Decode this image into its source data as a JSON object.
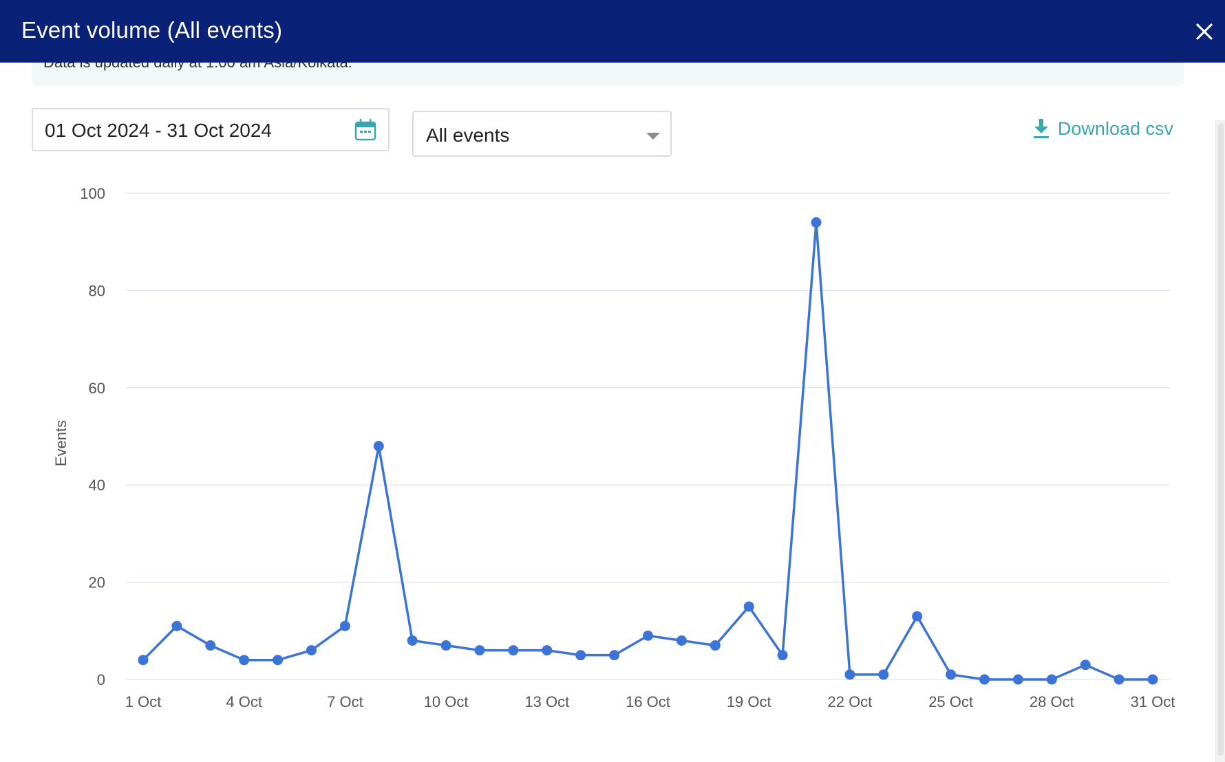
{
  "header": {
    "title": "Event volume (All events)"
  },
  "notice": {
    "text": "Data is updated daily at 1:00 am Asia/Kolkata."
  },
  "filters": {
    "date_range": "01 Oct 2024 - 31 Oct 2024",
    "event_type": "All events"
  },
  "actions": {
    "download_label": "Download csv"
  },
  "colors": {
    "header_bg": "#0a2178",
    "accent": "#3aa6b1",
    "series": "#3b74d6",
    "grid": "#e3e7ee",
    "axis_text": "#555555"
  },
  "chart_data": {
    "type": "line",
    "title": "",
    "xlabel": "",
    "ylabel": "Events",
    "ylim": [
      0,
      100
    ],
    "yticks": [
      0,
      20,
      40,
      60,
      80,
      100
    ],
    "x": [
      "1 Oct",
      "2 Oct",
      "3 Oct",
      "4 Oct",
      "5 Oct",
      "6 Oct",
      "7 Oct",
      "8 Oct",
      "9 Oct",
      "10 Oct",
      "11 Oct",
      "12 Oct",
      "13 Oct",
      "14 Oct",
      "15 Oct",
      "16 Oct",
      "17 Oct",
      "18 Oct",
      "19 Oct",
      "20 Oct",
      "21 Oct",
      "22 Oct",
      "23 Oct",
      "24 Oct",
      "25 Oct",
      "26 Oct",
      "27 Oct",
      "28 Oct",
      "29 Oct",
      "30 Oct",
      "31 Oct"
    ],
    "xtick_labels": [
      "1 Oct",
      "4 Oct",
      "7 Oct",
      "10 Oct",
      "13 Oct",
      "16 Oct",
      "19 Oct",
      "22 Oct",
      "25 Oct",
      "28 Oct",
      "31 Oct"
    ],
    "series": [
      {
        "name": "Events",
        "values": [
          4,
          11,
          7,
          4,
          4,
          6,
          11,
          48,
          8,
          7,
          6,
          6,
          6,
          5,
          5,
          9,
          8,
          7,
          15,
          5,
          94,
          1,
          1,
          13,
          1,
          0,
          0,
          0,
          3,
          0,
          0
        ]
      }
    ]
  }
}
